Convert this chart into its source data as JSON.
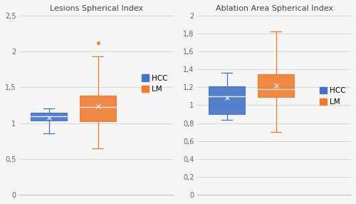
{
  "left_title": "Lesions Spherical Index",
  "right_title": "Ablation Area Spherical Index",
  "hcc_color": "#4472c4",
  "lm_color": "#ed7d31",
  "left": {
    "hcc": {
      "whislo": 0.855,
      "q1": 1.04,
      "med": 1.1,
      "q3": 1.15,
      "whishi": 1.2,
      "mean": 1.08,
      "fliers": []
    },
    "lm": {
      "whislo": 0.65,
      "q1": 1.03,
      "med": 1.22,
      "q3": 1.38,
      "whishi": 1.93,
      "mean": 1.23,
      "fliers": [
        2.12
      ]
    }
  },
  "right": {
    "hcc": {
      "whislo": 0.84,
      "q1": 0.9,
      "med": 1.1,
      "q3": 1.21,
      "whishi": 1.36,
      "mean": 1.08,
      "fliers": []
    },
    "lm": {
      "whislo": 0.7,
      "q1": 1.09,
      "med": 1.18,
      "q3": 1.35,
      "whishi": 1.82,
      "mean": 1.22,
      "fliers": []
    }
  },
  "left_ylim": [
    0,
    2.5
  ],
  "left_yticks": [
    0,
    0.5,
    1.0,
    1.5,
    2.0,
    2.5
  ],
  "left_yticklabels": [
    "0",
    "0,5",
    "1",
    "1,5",
    "2",
    "2,5"
  ],
  "right_ylim": [
    0,
    2.0
  ],
  "right_yticks": [
    0,
    0.2,
    0.4,
    0.6,
    0.8,
    1.0,
    1.2,
    1.4,
    1.6,
    1.8,
    2.0
  ],
  "right_yticklabels": [
    "0",
    "0,2",
    "0,4",
    "0,6",
    "0,8",
    "1",
    "1,2",
    "1,4",
    "1,6",
    "1,8",
    "2"
  ],
  "fig_bg": "#f5f5f5",
  "plot_bg": "#f5f5f5"
}
